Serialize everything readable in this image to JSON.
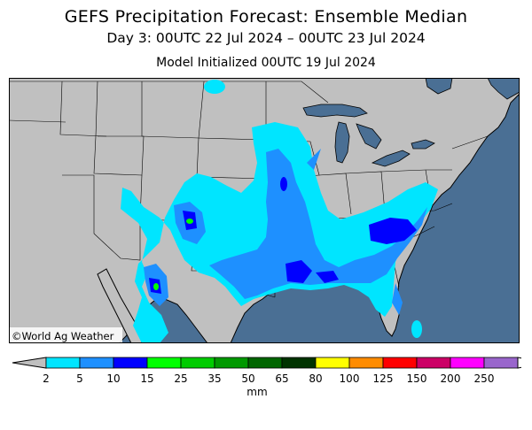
{
  "header": {
    "title": "GEFS Precipitation Forecast: Ensemble Median",
    "valid_period": "Day 3: 00UTC 22 Jul 2024 – 00UTC 23 Jul 2024",
    "init": "Model Initialized 00UTC 19 Jul 2024"
  },
  "map": {
    "credit": "©World Ag Weather",
    "colors": {
      "ocean": "#4a6f94",
      "land": "#c0c0c0"
    }
  },
  "legend": {
    "unit": "mm",
    "ticks": [
      "2",
      "5",
      "10",
      "15",
      "25",
      "35",
      "50",
      "65",
      "80",
      "100",
      "125",
      "150",
      "200",
      "250"
    ],
    "colors": [
      "#00e5ff",
      "#1e90ff",
      "#0000ff",
      "#00ff00",
      "#00cc00",
      "#009900",
      "#006600",
      "#003300",
      "#ffff00",
      "#ff8c00",
      "#ff0000",
      "#cc0066",
      "#ff00ff",
      "#9966cc"
    ],
    "end_color": "#c0c0c0"
  }
}
